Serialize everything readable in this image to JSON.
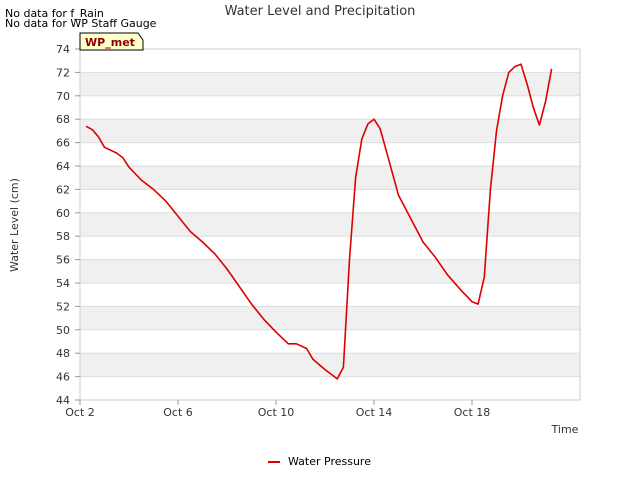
{
  "notes": [
    "No data for f_Rain",
    "No data for WP Staff Gauge"
  ],
  "station_label": "WP_met",
  "colors": {
    "series": "#dd0000",
    "band": "#f0f0f0",
    "grid": "#dddddd",
    "station_bg": "#ffffcc",
    "station_text": "#8b0000"
  },
  "chart_data": {
    "type": "line",
    "title": "Water Level and Precipitation",
    "xlabel": "Time",
    "ylabel": "Water Level (cm)",
    "ylim": [
      44,
      74
    ],
    "yticks": [
      44,
      46,
      48,
      50,
      52,
      54,
      56,
      58,
      60,
      62,
      64,
      66,
      68,
      70,
      72,
      74
    ],
    "xlim": [
      "2024-10-02",
      "2024-10-20"
    ],
    "xticks": [
      {
        "date": "2024-10-02",
        "label": "Oct 2"
      },
      {
        "date": "2024-10-06",
        "label": "Oct 6"
      },
      {
        "date": "2024-10-10",
        "label": "Oct 10"
      },
      {
        "date": "2024-10-14",
        "label": "Oct 14"
      },
      {
        "date": "2024-10-18",
        "label": "Oct 18"
      }
    ],
    "grid": true,
    "legend": "bottom-center",
    "series": [
      {
        "name": "Water Pressure",
        "points": [
          [
            "2024-10-02T06:00",
            67.4
          ],
          [
            "2024-10-02T12:00",
            67.1
          ],
          [
            "2024-10-02T18:00",
            66.5
          ],
          [
            "2024-10-03T00:00",
            65.6
          ],
          [
            "2024-10-03T12:00",
            65.1
          ],
          [
            "2024-10-03T18:00",
            64.7
          ],
          [
            "2024-10-04T00:00",
            63.9
          ],
          [
            "2024-10-04T12:00",
            62.8
          ],
          [
            "2024-10-05T00:00",
            62.0
          ],
          [
            "2024-10-05T12:00",
            61.0
          ],
          [
            "2024-10-06T00:00",
            59.7
          ],
          [
            "2024-10-06T12:00",
            58.4
          ],
          [
            "2024-10-07T00:00",
            57.5
          ],
          [
            "2024-10-07T12:00",
            56.5
          ],
          [
            "2024-10-08T00:00",
            55.2
          ],
          [
            "2024-10-08T12:00",
            53.7
          ],
          [
            "2024-10-09T00:00",
            52.2
          ],
          [
            "2024-10-09T12:00",
            50.9
          ],
          [
            "2024-10-10T00:00",
            49.8
          ],
          [
            "2024-10-10T12:00",
            48.8
          ],
          [
            "2024-10-10T20:00",
            48.8
          ],
          [
            "2024-10-11T06:00",
            48.4
          ],
          [
            "2024-10-11T12:00",
            47.5
          ],
          [
            "2024-10-12T00:00",
            46.6
          ],
          [
            "2024-10-12T12:00",
            45.8
          ],
          [
            "2024-10-12T18:00",
            46.8
          ],
          [
            "2024-10-13T00:00",
            56.0
          ],
          [
            "2024-10-13T06:00",
            63.0
          ],
          [
            "2024-10-13T12:00",
            66.3
          ],
          [
            "2024-10-13T18:00",
            67.6
          ],
          [
            "2024-10-14T00:00",
            68.0
          ],
          [
            "2024-10-14T06:00",
            67.2
          ],
          [
            "2024-10-14T12:00",
            65.3
          ],
          [
            "2024-10-15T00:00",
            61.5
          ],
          [
            "2024-10-15T12:00",
            59.5
          ],
          [
            "2024-10-16T00:00",
            57.5
          ],
          [
            "2024-10-16T12:00",
            56.2
          ],
          [
            "2024-10-17T00:00",
            54.7
          ],
          [
            "2024-10-17T12:00",
            53.5
          ],
          [
            "2024-10-18T00:00",
            52.4
          ],
          [
            "2024-10-18T06:00",
            52.2
          ],
          [
            "2024-10-18T12:00",
            54.5
          ],
          [
            "2024-10-18T18:00",
            62.0
          ],
          [
            "2024-10-19T00:00",
            67.0
          ],
          [
            "2024-10-19T06:00",
            70.0
          ],
          [
            "2024-10-19T12:00",
            72.0
          ],
          [
            "2024-10-19T18:00",
            72.5
          ],
          [
            "2024-10-20T00:00",
            72.7
          ],
          [
            "2024-10-20T06:00",
            71.0
          ],
          [
            "2024-10-20T12:00",
            69.0
          ],
          [
            "2024-10-20T18:00",
            67.5
          ],
          [
            "2024-10-21T00:00",
            69.5
          ],
          [
            "2024-10-21T06:00",
            72.3
          ]
        ]
      }
    ]
  }
}
